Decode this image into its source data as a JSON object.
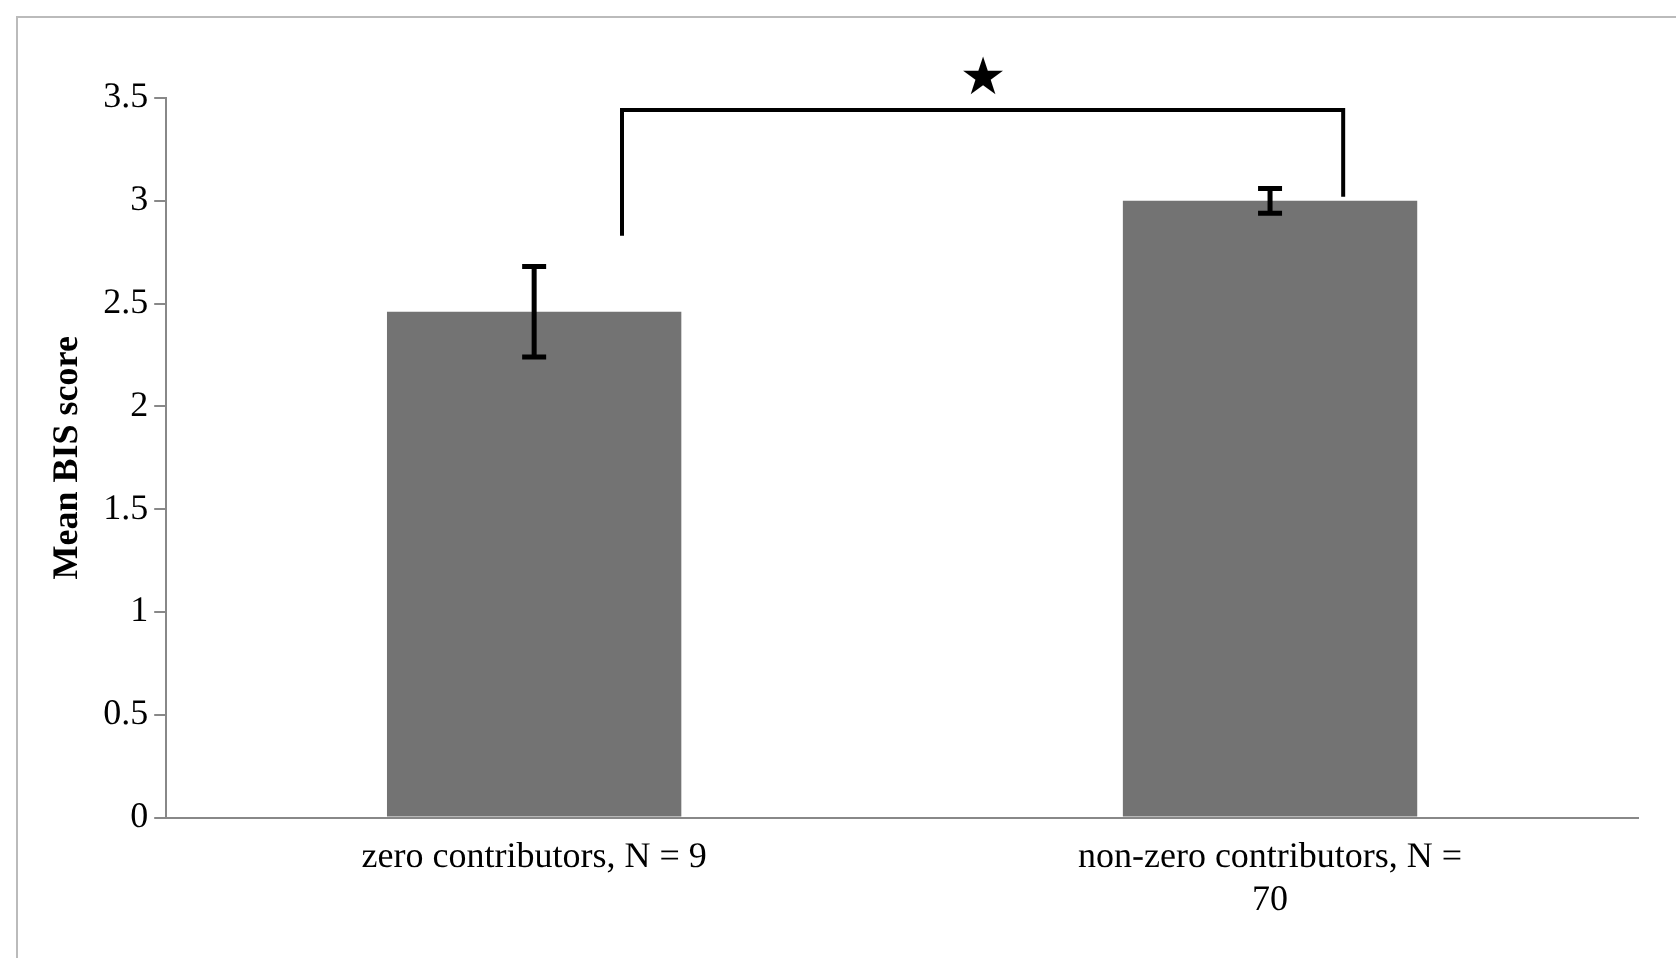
{
  "chart_data": {
    "type": "bar",
    "ylabel": "Mean BIS score",
    "categories": [
      "zero contributors, N = 9",
      "non-zero contributors, N = 70"
    ],
    "values": [
      2.46,
      3.0
    ],
    "color": "#737373",
    "errors": [
      0.22,
      0.06
    ],
    "ylim": [
      0,
      3.5
    ],
    "yticks": [
      0,
      0.5,
      1,
      1.5,
      2,
      2.5,
      3,
      3.5
    ],
    "grid": false,
    "legend": false,
    "annotations": [
      "★"
    ]
  }
}
